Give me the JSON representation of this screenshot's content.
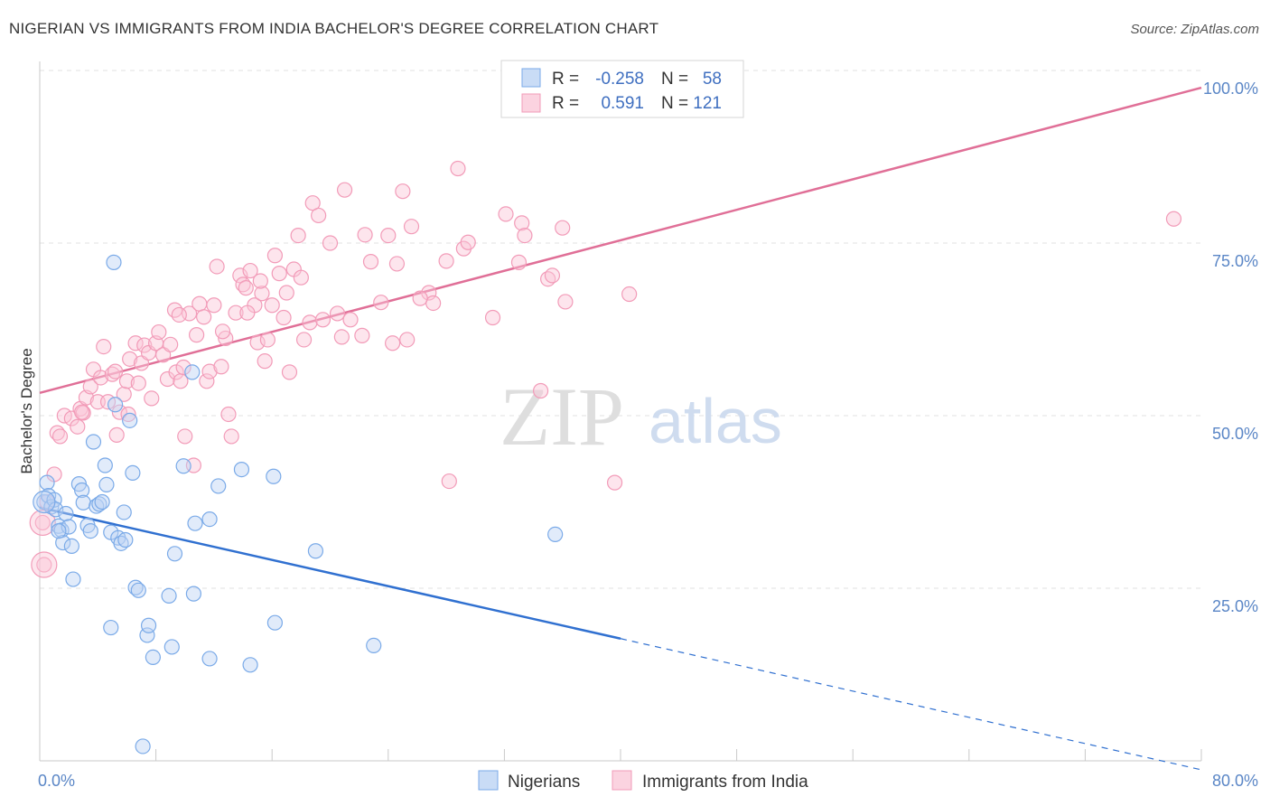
{
  "header": {
    "title": "NIGERIAN VS IMMIGRANTS FROM INDIA BACHELOR'S DEGREE CORRELATION CHART",
    "source": "Source: ZipAtlas.com"
  },
  "watermark": {
    "zip": "ZIP",
    "atlas": "atlas"
  },
  "legend_top": {
    "rows": [
      {
        "r_label": "R =",
        "r_value": "-0.258",
        "n_label": "N =",
        "n_value": "58",
        "color": "#7aaae8"
      },
      {
        "r_label": "R =",
        "r_value": "0.591",
        "n_label": "N =",
        "n_value": "121",
        "color": "#f29bb8"
      }
    ]
  },
  "legend_bottom": {
    "items": [
      {
        "label": "Nigerians",
        "color": "#7aaae8"
      },
      {
        "label": "Immigrants from India",
        "color": "#f29bb8"
      }
    ]
  },
  "chart_data": {
    "type": "scatter",
    "title": "NIGERIAN VS IMMIGRANTS FROM INDIA BACHELOR'S DEGREE CORRELATION CHART",
    "xlabel": "",
    "ylabel": "Bachelor's Degree",
    "xlim": [
      0,
      80
    ],
    "ylim": [
      0,
      100
    ],
    "x_tick_labels": [
      "0.0%",
      "80.0%"
    ],
    "y_tick_labels": [
      "25.0%",
      "50.0%",
      "75.0%",
      "100.0%"
    ],
    "y_ticks": [
      25,
      50,
      75,
      100
    ],
    "grid": true,
    "legend_position": "top-center",
    "series": [
      {
        "name": "Nigerians",
        "color": "#7aaae8",
        "line_color": "#3070d0",
        "r": -0.258,
        "n": 58,
        "trend": {
          "x0": 0,
          "y0": 36.7,
          "x1": 40,
          "y1": 17.7,
          "dash_to_x": 80,
          "dash_to_y": -1.3
        },
        "points": [
          [
            0.3,
            37.5
          ],
          [
            0.5,
            40.3
          ],
          [
            0.6,
            38.4
          ],
          [
            0.8,
            36.8
          ],
          [
            1.0,
            37.8
          ],
          [
            1.1,
            36.4
          ],
          [
            1.3,
            34.0
          ],
          [
            1.5,
            33.4
          ],
          [
            1.6,
            31.6
          ],
          [
            1.8,
            35.8
          ],
          [
            2.0,
            33.9
          ],
          [
            2.2,
            31.1
          ],
          [
            2.3,
            26.3
          ],
          [
            2.7,
            40.1
          ],
          [
            2.9,
            39.2
          ],
          [
            3.0,
            37.4
          ],
          [
            3.3,
            34.1
          ],
          [
            3.5,
            33.3
          ],
          [
            3.7,
            46.2
          ],
          [
            3.9,
            36.9
          ],
          [
            4.1,
            37.2
          ],
          [
            4.3,
            37.5
          ],
          [
            4.5,
            42.8
          ],
          [
            4.6,
            40.0
          ],
          [
            4.9,
            19.3
          ],
          [
            4.9,
            33.1
          ],
          [
            5.1,
            72.2
          ],
          [
            5.4,
            32.3
          ],
          [
            5.6,
            31.5
          ],
          [
            5.8,
            36.0
          ],
          [
            5.9,
            32.0
          ],
          [
            6.2,
            49.3
          ],
          [
            6.4,
            41.7
          ],
          [
            6.6,
            25.1
          ],
          [
            6.8,
            24.7
          ],
          [
            7.1,
            2.1
          ],
          [
            7.4,
            18.2
          ],
          [
            7.5,
            19.6
          ],
          [
            7.8,
            15.0
          ],
          [
            8.9,
            23.9
          ],
          [
            9.1,
            16.5
          ],
          [
            9.3,
            30.0
          ],
          [
            9.9,
            42.7
          ],
          [
            10.6,
            24.2
          ],
          [
            10.7,
            34.4
          ],
          [
            11.7,
            35.0
          ],
          [
            11.7,
            14.8
          ],
          [
            12.3,
            39.8
          ],
          [
            13.9,
            42.2
          ],
          [
            14.5,
            13.9
          ],
          [
            16.2,
            20.0
          ],
          [
            16.1,
            41.2
          ],
          [
            19.0,
            30.4
          ],
          [
            23.0,
            16.7
          ],
          [
            35.5,
            32.8
          ],
          [
            10.5,
            56.3
          ],
          [
            5.2,
            51.6
          ],
          [
            1.3,
            33.3
          ]
        ]
      },
      {
        "name": "Immigrants from India",
        "color": "#f29bb8",
        "line_color": "#e06f97",
        "r": 0.591,
        "n": 121,
        "trend": {
          "x0": 0,
          "y0": 53.3,
          "x1": 80,
          "y1": 97.5
        },
        "points": [
          [
            0.2,
            34.5
          ],
          [
            0.3,
            28.4
          ],
          [
            0.5,
            37.5
          ],
          [
            1.0,
            41.5
          ],
          [
            1.2,
            47.5
          ],
          [
            1.4,
            47.0
          ],
          [
            1.7,
            50.0
          ],
          [
            2.2,
            49.6
          ],
          [
            2.6,
            48.4
          ],
          [
            2.8,
            51.0
          ],
          [
            3.0,
            50.4
          ],
          [
            3.2,
            52.6
          ],
          [
            3.5,
            54.2
          ],
          [
            3.7,
            56.7
          ],
          [
            4.0,
            52.0
          ],
          [
            4.2,
            55.5
          ],
          [
            4.4,
            60.0
          ],
          [
            4.7,
            52.0
          ],
          [
            5.0,
            56.0
          ],
          [
            5.2,
            56.4
          ],
          [
            5.3,
            47.2
          ],
          [
            5.5,
            50.5
          ],
          [
            5.8,
            53.1
          ],
          [
            6.0,
            55.0
          ],
          [
            6.2,
            58.2
          ],
          [
            6.6,
            60.5
          ],
          [
            6.8,
            54.7
          ],
          [
            7.0,
            57.6
          ],
          [
            7.2,
            60.2
          ],
          [
            7.5,
            59.1
          ],
          [
            7.7,
            52.5
          ],
          [
            8.0,
            60.5
          ],
          [
            8.2,
            62.1
          ],
          [
            8.5,
            58.8
          ],
          [
            8.8,
            55.3
          ],
          [
            9.0,
            60.3
          ],
          [
            9.3,
            65.3
          ],
          [
            9.4,
            56.3
          ],
          [
            9.7,
            55.0
          ],
          [
            9.9,
            57.0
          ],
          [
            10.0,
            47.0
          ],
          [
            10.3,
            64.8
          ],
          [
            10.6,
            42.8
          ],
          [
            10.8,
            61.7
          ],
          [
            11.0,
            66.2
          ],
          [
            11.3,
            64.3
          ],
          [
            11.5,
            55.0
          ],
          [
            11.7,
            56.4
          ],
          [
            12.0,
            66.0
          ],
          [
            12.2,
            71.6
          ],
          [
            12.5,
            57.1
          ],
          [
            12.8,
            61.2
          ],
          [
            13.0,
            50.2
          ],
          [
            13.2,
            47.0
          ],
          [
            13.5,
            64.9
          ],
          [
            13.8,
            70.3
          ],
          [
            14.0,
            69.0
          ],
          [
            14.2,
            68.5
          ],
          [
            14.5,
            71.0
          ],
          [
            14.8,
            66.0
          ],
          [
            15.0,
            60.6
          ],
          [
            15.3,
            67.7
          ],
          [
            15.5,
            57.9
          ],
          [
            15.7,
            61.0
          ],
          [
            16.0,
            66.0
          ],
          [
            16.2,
            73.2
          ],
          [
            16.5,
            70.6
          ],
          [
            16.8,
            64.2
          ],
          [
            17.0,
            67.8
          ],
          [
            17.2,
            56.3
          ],
          [
            17.5,
            71.2
          ],
          [
            17.8,
            76.1
          ],
          [
            18.0,
            70.0
          ],
          [
            18.2,
            61.0
          ],
          [
            18.6,
            63.5
          ],
          [
            18.8,
            80.8
          ],
          [
            19.2,
            79.0
          ],
          [
            19.5,
            63.9
          ],
          [
            20.0,
            75.0
          ],
          [
            20.5,
            64.8
          ],
          [
            20.8,
            61.4
          ],
          [
            21.0,
            82.7
          ],
          [
            21.4,
            63.9
          ],
          [
            22.2,
            61.6
          ],
          [
            22.4,
            76.2
          ],
          [
            22.8,
            72.3
          ],
          [
            23.5,
            66.4
          ],
          [
            24.0,
            76.1
          ],
          [
            24.3,
            60.5
          ],
          [
            24.6,
            72.0
          ],
          [
            25.0,
            82.5
          ],
          [
            25.3,
            61.0
          ],
          [
            25.6,
            77.4
          ],
          [
            26.8,
            67.8
          ],
          [
            27.1,
            66.3
          ],
          [
            28.0,
            72.4
          ],
          [
            28.2,
            40.5
          ],
          [
            28.8,
            85.8
          ],
          [
            29.2,
            74.2
          ],
          [
            29.5,
            75.1
          ],
          [
            31.2,
            64.2
          ],
          [
            32.1,
            79.2
          ],
          [
            33.0,
            72.2
          ],
          [
            33.2,
            77.9
          ],
          [
            33.4,
            76.1
          ],
          [
            34.5,
            53.6
          ],
          [
            35.0,
            69.8
          ],
          [
            35.3,
            70.3
          ],
          [
            36.0,
            77.2
          ],
          [
            36.2,
            66.5
          ],
          [
            39.6,
            40.3
          ],
          [
            40.6,
            67.6
          ],
          [
            78.1,
            78.5
          ],
          [
            2.9,
            50.5
          ],
          [
            6.1,
            50.2
          ],
          [
            9.6,
            64.6
          ],
          [
            14.3,
            64.9
          ],
          [
            26.2,
            67.0
          ],
          [
            15.2,
            69.5
          ],
          [
            12.6,
            62.2
          ]
        ]
      }
    ]
  }
}
